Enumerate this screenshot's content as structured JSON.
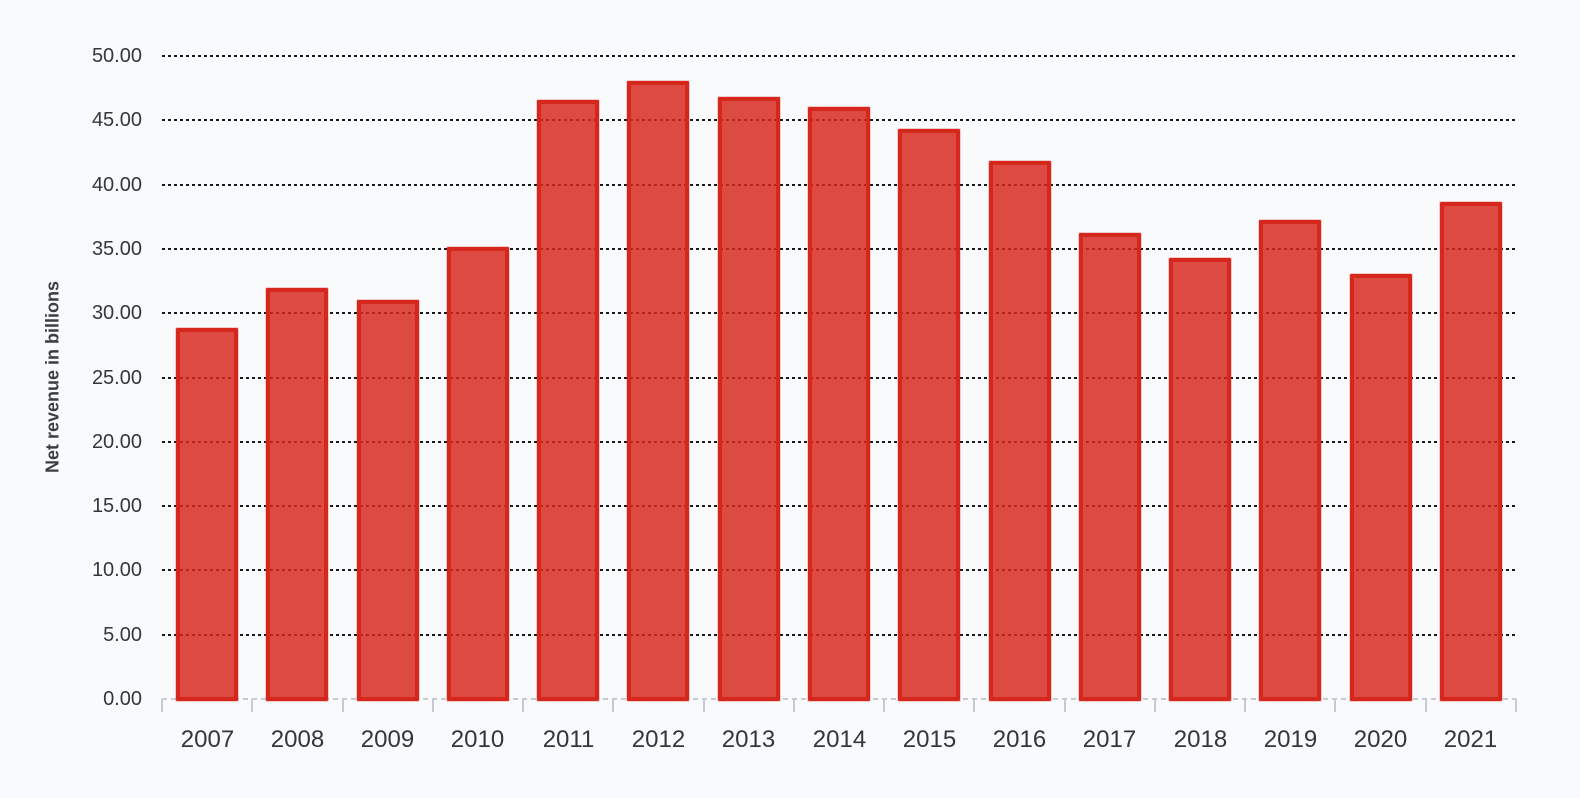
{
  "chart_data": {
    "type": "bar",
    "title": "",
    "xlabel": "",
    "ylabel": "Net revenue in billions",
    "categories": [
      "2007",
      "2008",
      "2009",
      "2010",
      "2011",
      "2012",
      "2013",
      "2014",
      "2015",
      "2016",
      "2017",
      "2018",
      "2019",
      "2020",
      "2021"
    ],
    "series": [
      {
        "name": "Net revenue in billions",
        "values": [
          28.86,
          31.94,
          30.99,
          35.12,
          46.54,
          48.02,
          46.85,
          46.0,
          44.29,
          41.86,
          36.21,
          34.3,
          37.27,
          33.01,
          38.66
        ]
      }
    ],
    "ylim": [
      0,
      50
    ],
    "ytick_step": 5,
    "ytick_labels": [
      "0.00",
      "5.00",
      "10.00",
      "15.00",
      "20.00",
      "25.00",
      "30.00",
      "35.00",
      "40.00",
      "45.00",
      "50.00"
    ],
    "grid": "horizontal dotted",
    "legend_position": "none",
    "colors": {
      "bar_border": "#d6271c",
      "bar_fill": "rgba(214,39,27,0.83)",
      "gridline": "#191919",
      "axis_line": "#c8cbce",
      "text": "#33373c",
      "background": "#f9fafc"
    }
  }
}
